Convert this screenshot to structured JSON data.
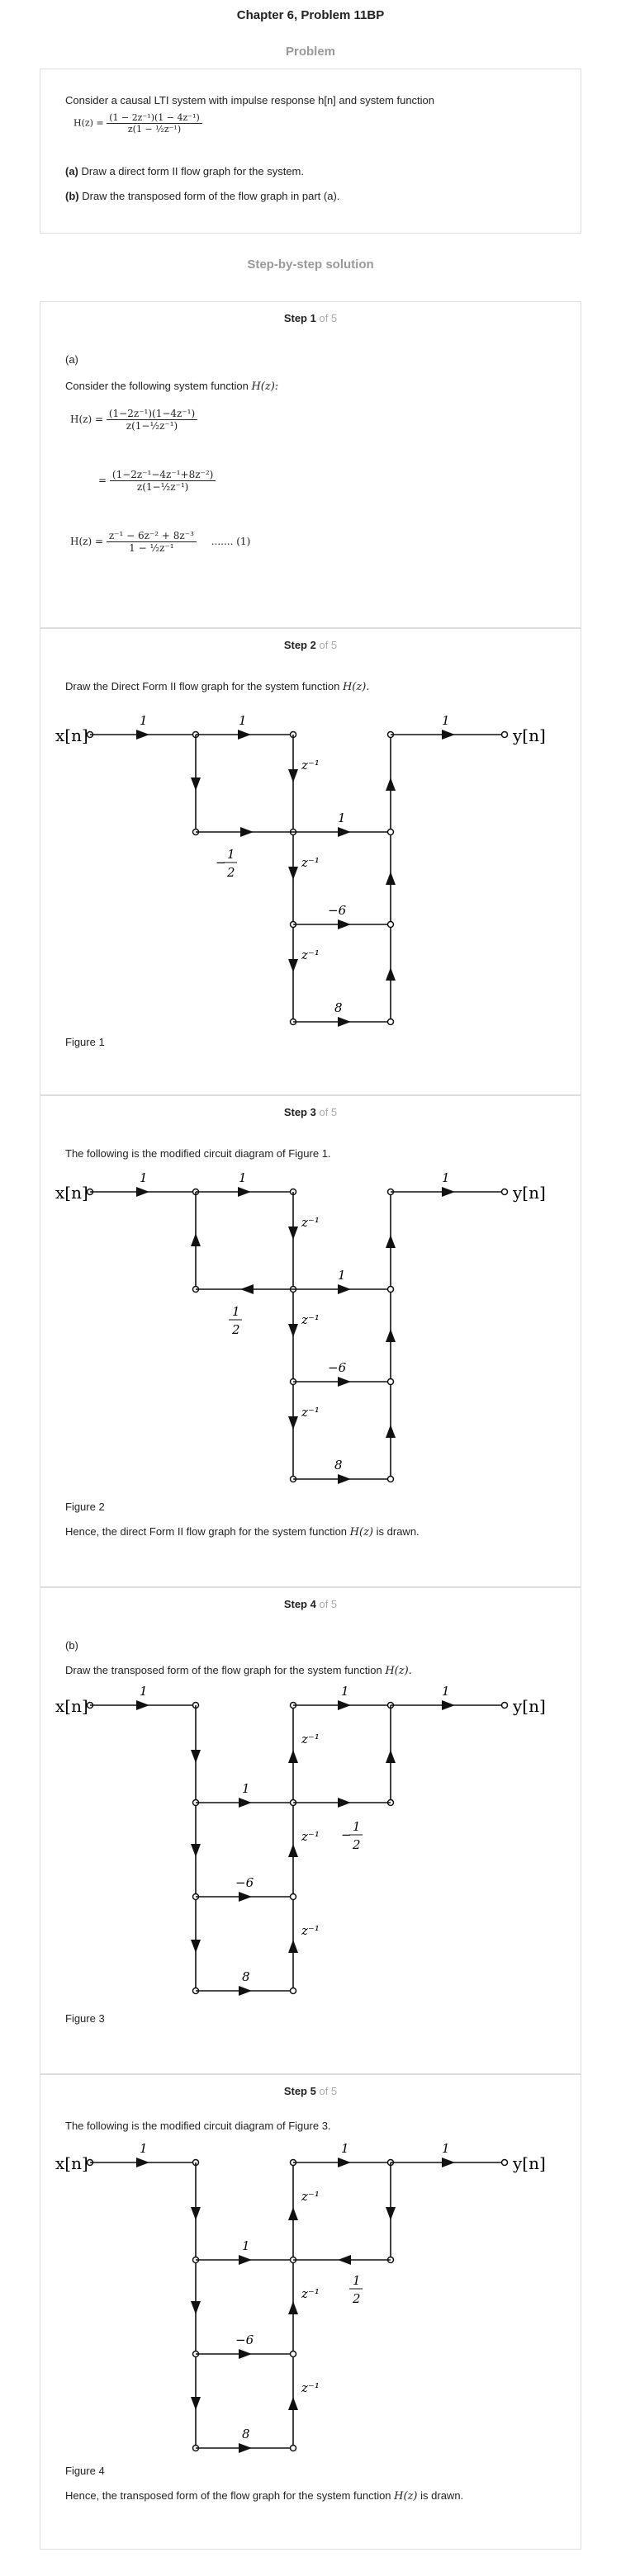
{
  "header": {
    "title": "Chapter 6, Problem 11BP",
    "problem_heading": "Problem",
    "solution_heading": "Step-by-step solution"
  },
  "problem": {
    "intro": "Consider a causal LTI system with impulse response h[n] and system function",
    "hz_lhs": "H(z) =",
    "hz_num": "(1 − 2z⁻¹)(1 − 4z⁻¹)",
    "hz_den": "z(1 − ½z⁻¹)",
    "a_tag": "(a)",
    "a_text": "Draw a direct form II flow graph for the system.",
    "b_tag": "(b)",
    "b_text": "Draw the transposed form of the flow graph in part (a)."
  },
  "steps": [
    {
      "step_label": "Step 1",
      "of_label": "of 5",
      "part": "(a)",
      "text": "Consider the following system function",
      "text_math": "H(z):",
      "eq1_lhs": "H(z) =",
      "eq1_num": "(1−2z⁻¹)(1−4z⁻¹)",
      "eq1_den": "z(1−½z⁻¹)",
      "eq2_lhs": "=",
      "eq2_num": "(1−2z⁻¹−4z⁻¹+8z⁻²)",
      "eq2_den": "z(1−½z⁻¹)",
      "eq3_lhs": "H(z) =",
      "eq3_num": "z⁻¹ − 6z⁻² + 8z⁻³",
      "eq3_den": "1 − ½z⁻¹",
      "eq3_tag": "....... (1)"
    },
    {
      "step_label": "Step 2",
      "of_label": "of 5",
      "text": "Draw the Direct Form II flow graph for the system function",
      "text_math": "H(z).",
      "figure_caption": "Figure 1"
    },
    {
      "step_label": "Step 3",
      "of_label": "of 5",
      "text": "The following is the modified circuit diagram of Figure 1.",
      "figure_caption": "Figure 2",
      "conclusion": "Hence, the direct Form II flow graph for the system function",
      "conclusion_math": "H(z)",
      "conclusion_end": "is drawn."
    },
    {
      "step_label": "Step 4",
      "of_label": "of 5",
      "part": "(b)",
      "text": "Draw the transposed form of the flow graph for the system function",
      "text_math": "H(z).",
      "figure_caption": "Figure 3"
    },
    {
      "step_label": "Step 5",
      "of_label": "of 5",
      "text": "The following is the modified circuit diagram of Figure 3.",
      "figure_caption": "Figure 4",
      "conclusion": "Hence, the transposed form of the flow graph for the system function",
      "conclusion_math": "H(z)",
      "conclusion_end": "is drawn."
    }
  ],
  "graph_labels": {
    "input": "x[n]",
    "output": "y[n]",
    "one": "1",
    "zinv": "z⁻¹",
    "minus_six": "−6",
    "eight": "8",
    "half_num": "1",
    "half_den": "2",
    "minus": "−"
  }
}
